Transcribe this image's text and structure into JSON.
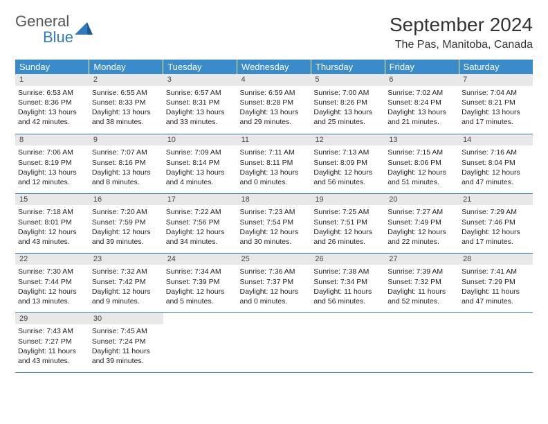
{
  "logo": {
    "part1": "General",
    "part2": "Blue"
  },
  "title": "September 2024",
  "location": "The Pas, Manitoba, Canada",
  "header_bg": "#3a8bc9",
  "border_color": "#2f7bbf",
  "weekdays": [
    "Sunday",
    "Monday",
    "Tuesday",
    "Wednesday",
    "Thursday",
    "Friday",
    "Saturday"
  ],
  "days": [
    {
      "n": "1",
      "sr": "Sunrise: 6:53 AM",
      "ss": "Sunset: 8:36 PM",
      "d1": "Daylight: 13 hours",
      "d2": "and 42 minutes."
    },
    {
      "n": "2",
      "sr": "Sunrise: 6:55 AM",
      "ss": "Sunset: 8:33 PM",
      "d1": "Daylight: 13 hours",
      "d2": "and 38 minutes."
    },
    {
      "n": "3",
      "sr": "Sunrise: 6:57 AM",
      "ss": "Sunset: 8:31 PM",
      "d1": "Daylight: 13 hours",
      "d2": "and 33 minutes."
    },
    {
      "n": "4",
      "sr": "Sunrise: 6:59 AM",
      "ss": "Sunset: 8:28 PM",
      "d1": "Daylight: 13 hours",
      "d2": "and 29 minutes."
    },
    {
      "n": "5",
      "sr": "Sunrise: 7:00 AM",
      "ss": "Sunset: 8:26 PM",
      "d1": "Daylight: 13 hours",
      "d2": "and 25 minutes."
    },
    {
      "n": "6",
      "sr": "Sunrise: 7:02 AM",
      "ss": "Sunset: 8:24 PM",
      "d1": "Daylight: 13 hours",
      "d2": "and 21 minutes."
    },
    {
      "n": "7",
      "sr": "Sunrise: 7:04 AM",
      "ss": "Sunset: 8:21 PM",
      "d1": "Daylight: 13 hours",
      "d2": "and 17 minutes."
    },
    {
      "n": "8",
      "sr": "Sunrise: 7:06 AM",
      "ss": "Sunset: 8:19 PM",
      "d1": "Daylight: 13 hours",
      "d2": "and 12 minutes."
    },
    {
      "n": "9",
      "sr": "Sunrise: 7:07 AM",
      "ss": "Sunset: 8:16 PM",
      "d1": "Daylight: 13 hours",
      "d2": "and 8 minutes."
    },
    {
      "n": "10",
      "sr": "Sunrise: 7:09 AM",
      "ss": "Sunset: 8:14 PM",
      "d1": "Daylight: 13 hours",
      "d2": "and 4 minutes."
    },
    {
      "n": "11",
      "sr": "Sunrise: 7:11 AM",
      "ss": "Sunset: 8:11 PM",
      "d1": "Daylight: 13 hours",
      "d2": "and 0 minutes."
    },
    {
      "n": "12",
      "sr": "Sunrise: 7:13 AM",
      "ss": "Sunset: 8:09 PM",
      "d1": "Daylight: 12 hours",
      "d2": "and 56 minutes."
    },
    {
      "n": "13",
      "sr": "Sunrise: 7:15 AM",
      "ss": "Sunset: 8:06 PM",
      "d1": "Daylight: 12 hours",
      "d2": "and 51 minutes."
    },
    {
      "n": "14",
      "sr": "Sunrise: 7:16 AM",
      "ss": "Sunset: 8:04 PM",
      "d1": "Daylight: 12 hours",
      "d2": "and 47 minutes."
    },
    {
      "n": "15",
      "sr": "Sunrise: 7:18 AM",
      "ss": "Sunset: 8:01 PM",
      "d1": "Daylight: 12 hours",
      "d2": "and 43 minutes."
    },
    {
      "n": "16",
      "sr": "Sunrise: 7:20 AM",
      "ss": "Sunset: 7:59 PM",
      "d1": "Daylight: 12 hours",
      "d2": "and 39 minutes."
    },
    {
      "n": "17",
      "sr": "Sunrise: 7:22 AM",
      "ss": "Sunset: 7:56 PM",
      "d1": "Daylight: 12 hours",
      "d2": "and 34 minutes."
    },
    {
      "n": "18",
      "sr": "Sunrise: 7:23 AM",
      "ss": "Sunset: 7:54 PM",
      "d1": "Daylight: 12 hours",
      "d2": "and 30 minutes."
    },
    {
      "n": "19",
      "sr": "Sunrise: 7:25 AM",
      "ss": "Sunset: 7:51 PM",
      "d1": "Daylight: 12 hours",
      "d2": "and 26 minutes."
    },
    {
      "n": "20",
      "sr": "Sunrise: 7:27 AM",
      "ss": "Sunset: 7:49 PM",
      "d1": "Daylight: 12 hours",
      "d2": "and 22 minutes."
    },
    {
      "n": "21",
      "sr": "Sunrise: 7:29 AM",
      "ss": "Sunset: 7:46 PM",
      "d1": "Daylight: 12 hours",
      "d2": "and 17 minutes."
    },
    {
      "n": "22",
      "sr": "Sunrise: 7:30 AM",
      "ss": "Sunset: 7:44 PM",
      "d1": "Daylight: 12 hours",
      "d2": "and 13 minutes."
    },
    {
      "n": "23",
      "sr": "Sunrise: 7:32 AM",
      "ss": "Sunset: 7:42 PM",
      "d1": "Daylight: 12 hours",
      "d2": "and 9 minutes."
    },
    {
      "n": "24",
      "sr": "Sunrise: 7:34 AM",
      "ss": "Sunset: 7:39 PM",
      "d1": "Daylight: 12 hours",
      "d2": "and 5 minutes."
    },
    {
      "n": "25",
      "sr": "Sunrise: 7:36 AM",
      "ss": "Sunset: 7:37 PM",
      "d1": "Daylight: 12 hours",
      "d2": "and 0 minutes."
    },
    {
      "n": "26",
      "sr": "Sunrise: 7:38 AM",
      "ss": "Sunset: 7:34 PM",
      "d1": "Daylight: 11 hours",
      "d2": "and 56 minutes."
    },
    {
      "n": "27",
      "sr": "Sunrise: 7:39 AM",
      "ss": "Sunset: 7:32 PM",
      "d1": "Daylight: 11 hours",
      "d2": "and 52 minutes."
    },
    {
      "n": "28",
      "sr": "Sunrise: 7:41 AM",
      "ss": "Sunset: 7:29 PM",
      "d1": "Daylight: 11 hours",
      "d2": "and 47 minutes."
    },
    {
      "n": "29",
      "sr": "Sunrise: 7:43 AM",
      "ss": "Sunset: 7:27 PM",
      "d1": "Daylight: 11 hours",
      "d2": "and 43 minutes."
    },
    {
      "n": "30",
      "sr": "Sunrise: 7:45 AM",
      "ss": "Sunset: 7:24 PM",
      "d1": "Daylight: 11 hours",
      "d2": "and 39 minutes."
    }
  ]
}
